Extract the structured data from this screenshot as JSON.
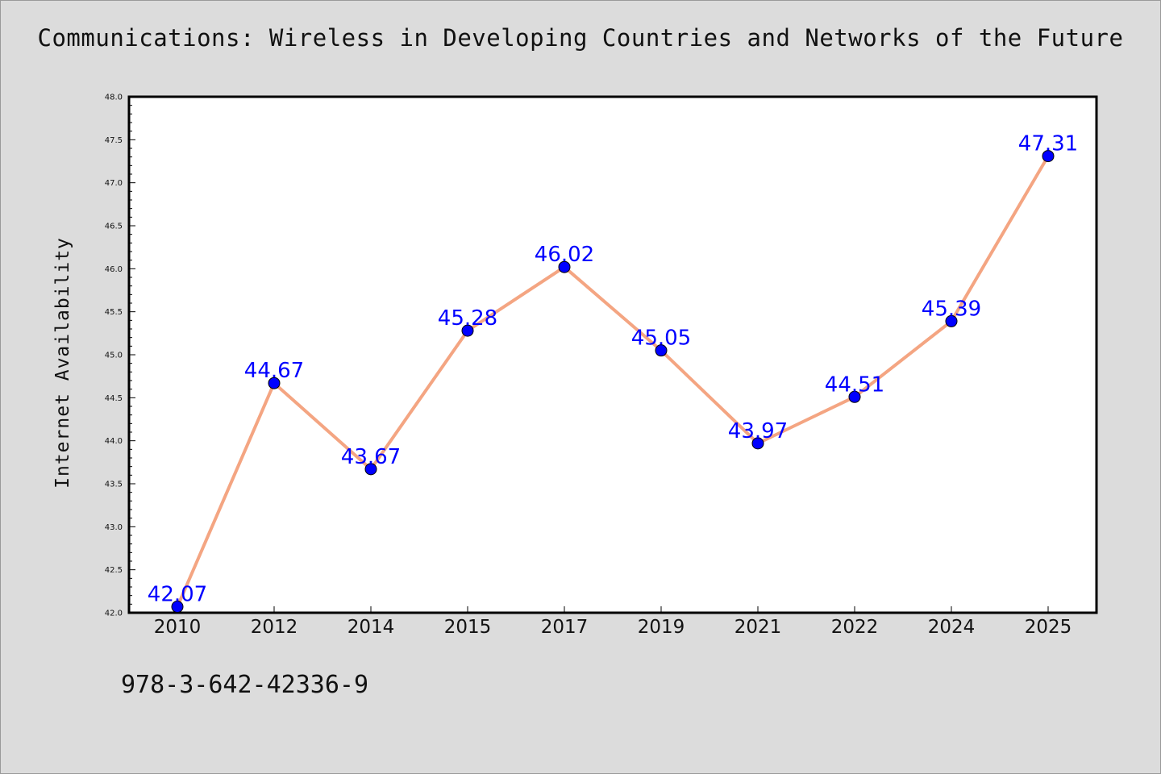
{
  "title": "Communications: Wireless in Developing Countries and Networks of the Future",
  "footnote": "978-3-642-42336-9",
  "colors": {
    "line": "#f4a582",
    "marker": "#0000ff",
    "label": "#0000ff",
    "background": "#dcdcdc",
    "plot_bg": "#ffffff"
  },
  "chart_data": {
    "type": "line",
    "title": "Communications: Wireless in Developing Countries and Networks of the Future",
    "xlabel": "",
    "ylabel": "Internet Availability",
    "categories": [
      "2010",
      "2012",
      "2014",
      "2015",
      "2017",
      "2019",
      "2021",
      "2022",
      "2024",
      "2025"
    ],
    "series": [
      {
        "values": [
          42.07,
          44.67,
          43.67,
          45.28,
          46.02,
          45.05,
          43.97,
          44.51,
          45.39,
          47.31
        ]
      }
    ],
    "data_labels": [
      "42.07",
      "44.67",
      "43.67",
      "45.28",
      "46.02",
      "45.05",
      "43.97",
      "44.51",
      "45.39",
      "47.31"
    ],
    "ylim": [
      42.0,
      48.0
    ],
    "yticks": [
      "42.0",
      "42.5",
      "43.0",
      "43.5",
      "44.0",
      "44.5",
      "45.0",
      "45.5",
      "46.0",
      "46.5",
      "47.0",
      "47.5",
      "48.0"
    ],
    "grid": false,
    "legend": "none"
  }
}
